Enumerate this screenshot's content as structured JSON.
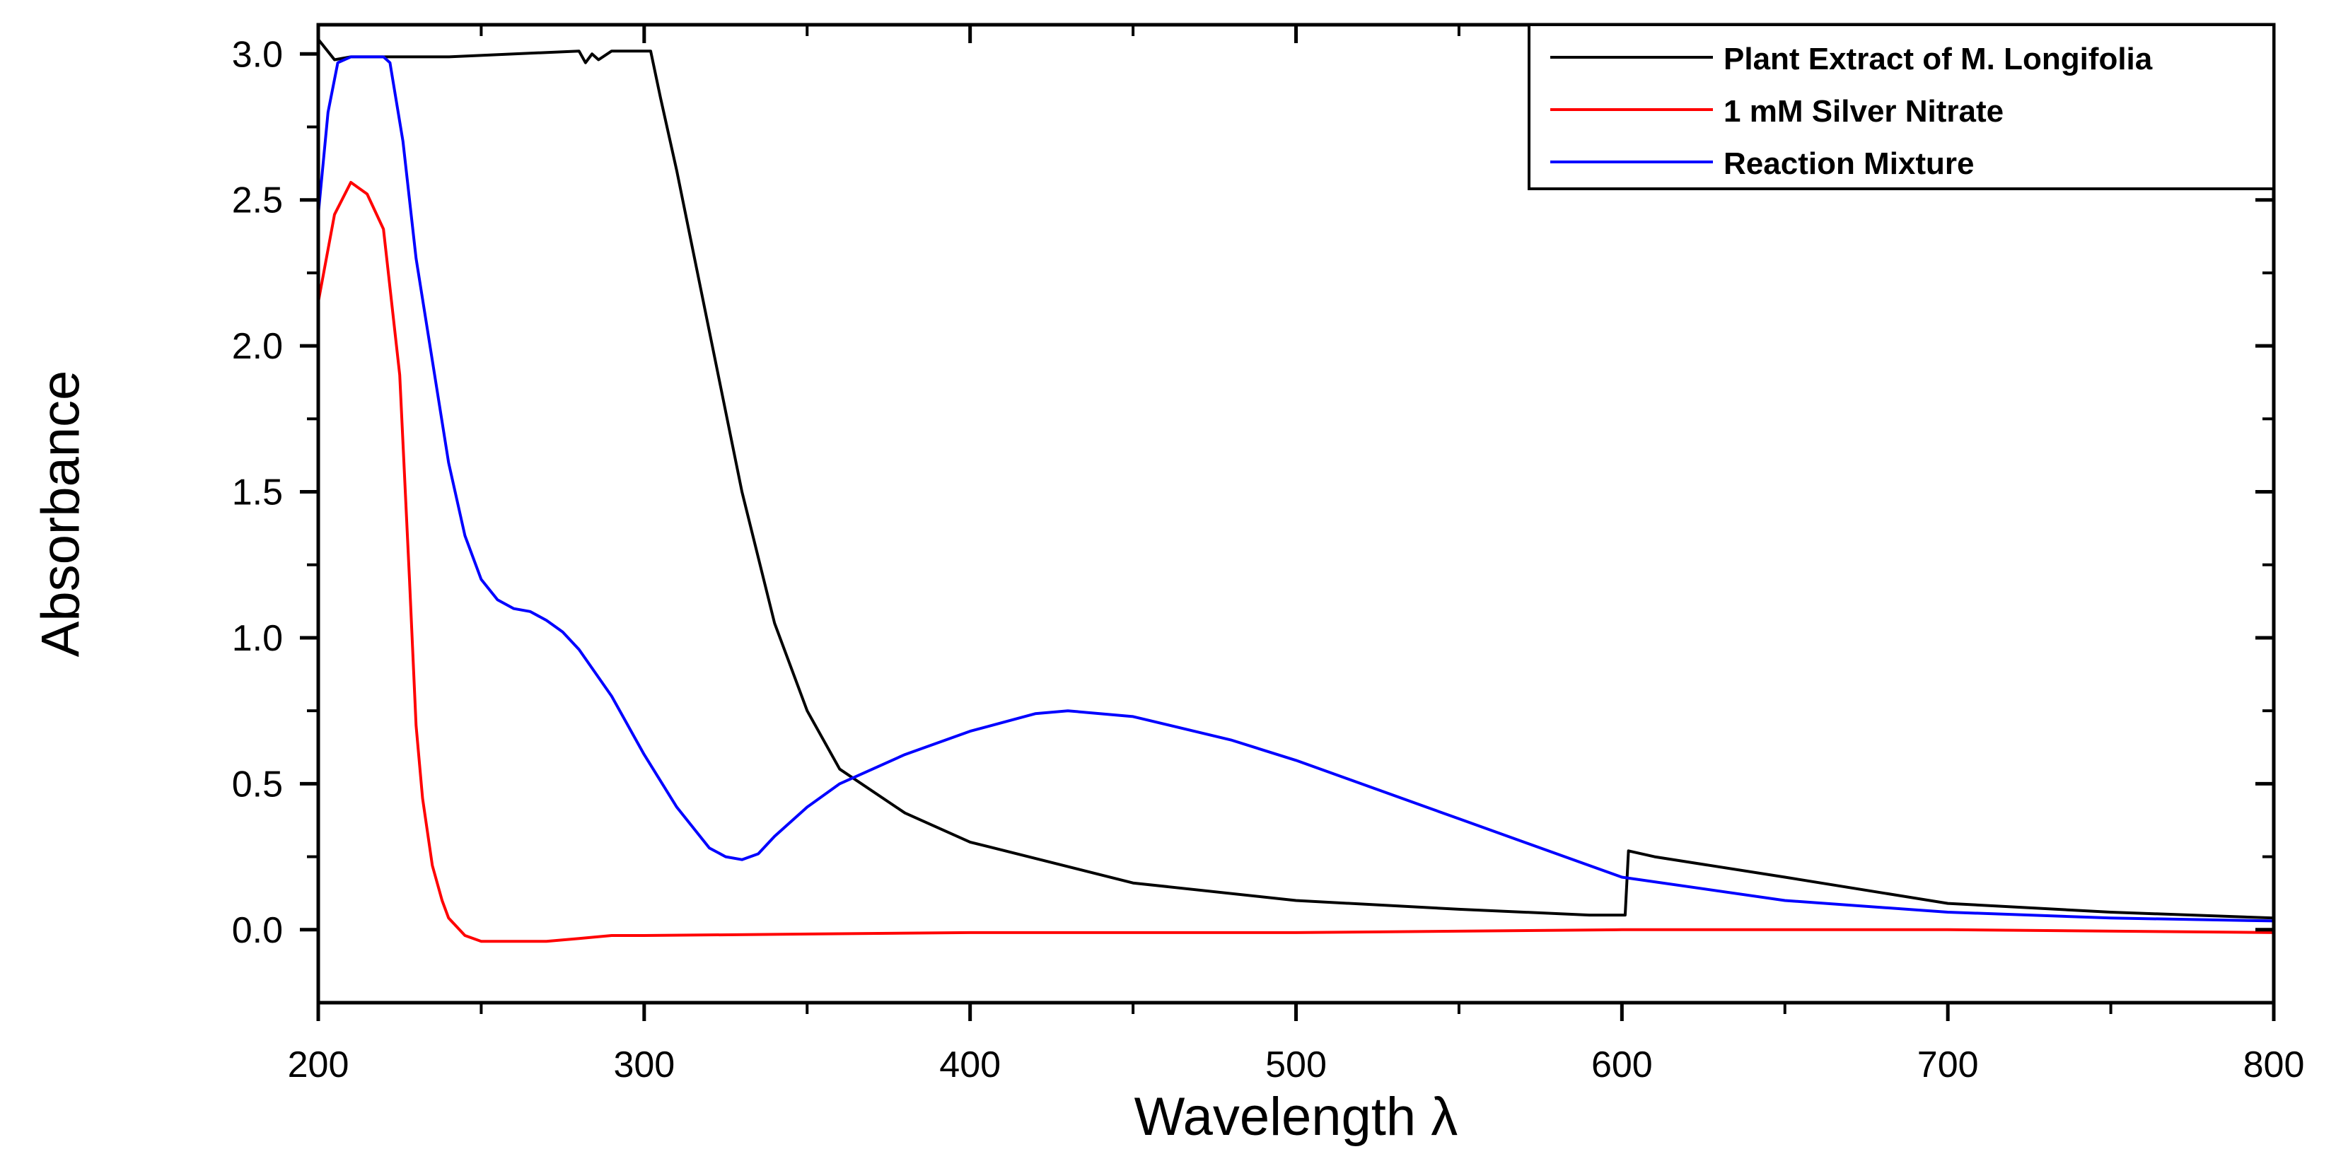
{
  "chart_data": {
    "type": "line",
    "title": "",
    "xlabel": "Wavelength λ",
    "ylabel": "Absorbance",
    "xlim": [
      200,
      800
    ],
    "ylim": [
      -0.25,
      3.1
    ],
    "x_ticks": [
      200,
      300,
      400,
      500,
      600,
      700,
      800
    ],
    "y_ticks": [
      0.0,
      0.5,
      1.0,
      1.5,
      2.0,
      2.5,
      3.0
    ],
    "x_tick_labels": [
      "200",
      "300",
      "400",
      "500",
      "600",
      "700",
      "800"
    ],
    "y_tick_labels": [
      "0.0",
      "0.5",
      "1.0",
      "1.5",
      "2.0",
      "2.5",
      "3.0"
    ],
    "grid": false,
    "legend_position": "top-right",
    "series": [
      {
        "name": "Plant Extract of M. Longifolia",
        "color": "#000000",
        "x": [
          200,
          205,
          210,
          220,
          240,
          260,
          280,
          282,
          284,
          286,
          290,
          300,
          302,
          305,
          310,
          320,
          330,
          340,
          350,
          360,
          380,
          400,
          450,
          500,
          550,
          590,
          601,
          602,
          610,
          650,
          700,
          750,
          800
        ],
        "y": [
          3.05,
          2.98,
          2.99,
          2.99,
          2.99,
          3.0,
          3.01,
          2.97,
          3.0,
          2.98,
          3.01,
          3.01,
          3.01,
          2.85,
          2.6,
          2.05,
          1.5,
          1.05,
          0.75,
          0.55,
          0.4,
          0.3,
          0.16,
          0.1,
          0.07,
          0.05,
          0.05,
          0.27,
          0.25,
          0.18,
          0.09,
          0.06,
          0.04
        ]
      },
      {
        "name": "1 mM Silver Nitrate",
        "color": "#ff0000",
        "x": [
          200,
          205,
          210,
          215,
          220,
          225,
          228,
          230,
          232,
          235,
          238,
          240,
          245,
          250,
          255,
          260,
          270,
          280,
          290,
          300,
          400,
          500,
          600,
          700,
          800
        ],
        "y": [
          2.15,
          2.45,
          2.56,
          2.52,
          2.4,
          1.9,
          1.2,
          0.7,
          0.45,
          0.22,
          0.1,
          0.04,
          -0.02,
          -0.04,
          -0.04,
          -0.04,
          -0.04,
          -0.03,
          -0.02,
          -0.02,
          -0.01,
          -0.01,
          0.0,
          0.0,
          -0.01
        ]
      },
      {
        "name": "Reaction Mixture",
        "color": "#0000ff",
        "x": [
          200,
          203,
          206,
          210,
          215,
          220,
          222,
          226,
          230,
          235,
          240,
          245,
          250,
          255,
          260,
          265,
          270,
          275,
          280,
          290,
          300,
          310,
          320,
          325,
          330,
          335,
          340,
          350,
          360,
          380,
          400,
          420,
          430,
          450,
          480,
          500,
          550,
          600,
          650,
          700,
          750,
          800
        ],
        "y": [
          2.45,
          2.8,
          2.97,
          2.99,
          2.99,
          2.99,
          2.97,
          2.7,
          2.3,
          1.95,
          1.6,
          1.35,
          1.2,
          1.13,
          1.1,
          1.09,
          1.06,
          1.02,
          0.96,
          0.8,
          0.6,
          0.42,
          0.28,
          0.25,
          0.24,
          0.26,
          0.32,
          0.42,
          0.5,
          0.6,
          0.68,
          0.74,
          0.75,
          0.73,
          0.65,
          0.58,
          0.38,
          0.18,
          0.1,
          0.06,
          0.04,
          0.03
        ]
      }
    ]
  }
}
